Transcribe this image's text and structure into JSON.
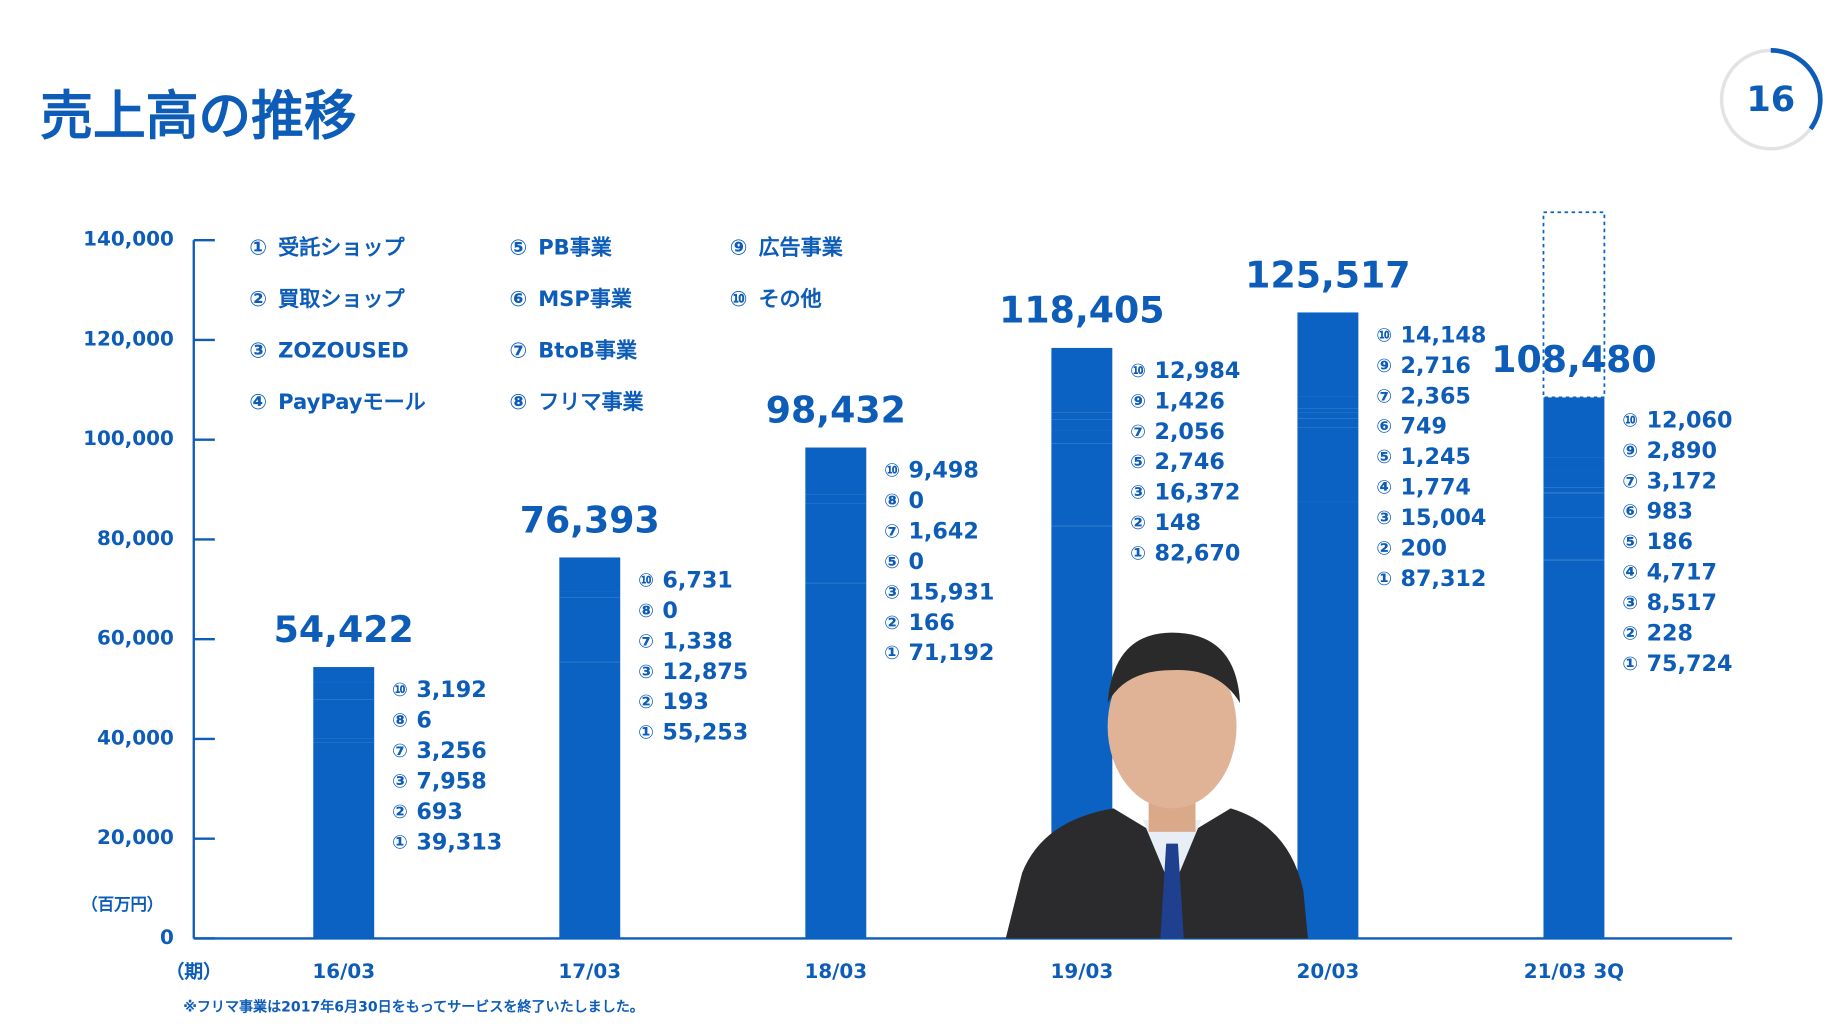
{
  "page_number": "16",
  "chart_data": {
    "type": "stacked_bar",
    "title": "売上高の推移",
    "y_unit_label": "（百万円）",
    "x_label": "（期）",
    "footnote": "※フリマ事業は2017年6月30日をもってサービスを終了いたしました。",
    "color": "#0b62c2",
    "ylim": [
      0,
      140000
    ],
    "yticks": [
      0,
      {
        "value": 20000,
        "label": "20,000"
      },
      {
        "value": 40000,
        "label": "40,000"
      },
      {
        "value": 60000,
        "label": "60,000"
      },
      {
        "value": 80000,
        "label": "80,000"
      },
      {
        "value": 100000,
        "label": "100,000"
      },
      {
        "value": 120000,
        "label": "120,000"
      },
      {
        "value": 140000,
        "label": "140,000"
      }
    ],
    "legend": [
      {
        "marker": "①",
        "name": "受託ショップ"
      },
      {
        "marker": "②",
        "name": "買取ショップ"
      },
      {
        "marker": "③",
        "name": "ZOZOUSED"
      },
      {
        "marker": "④",
        "name": "PayPayモール"
      },
      {
        "marker": "⑤",
        "name": "PB事業"
      },
      {
        "marker": "⑥",
        "name": "MSP事業"
      },
      {
        "marker": "⑦",
        "name": "BtoB事業"
      },
      {
        "marker": "⑧",
        "name": "フリマ事業"
      },
      {
        "marker": "⑨",
        "name": "広告事業"
      },
      {
        "marker": "⑩",
        "name": "その他"
      }
    ],
    "categories": [
      "16/03",
      "17/03",
      "18/03",
      "19/03",
      "20/03",
      "21/03 3Q"
    ],
    "values": [
      54422,
      76393,
      98432,
      118405,
      125517,
      108480
    ],
    "value_labels": [
      "54,422",
      "76,393",
      "98,432",
      "118,405",
      "125,517",
      "108,480"
    ],
    "segments": [
      [
        {
          "key": "⑩",
          "value": 3192,
          "value_label": "3,192"
        },
        {
          "key": "⑧",
          "value": 6
        },
        {
          "key": "⑦",
          "value": 3256,
          "value_label": "3,256"
        },
        {
          "key": "③",
          "value": 7958,
          "value_label": "7,958"
        },
        {
          "key": "②",
          "value": 693
        },
        {
          "key": "①",
          "value": 39313,
          "value_label": "39,313"
        }
      ],
      [
        {
          "key": "⑩",
          "value": 6731,
          "value_label": "6,731"
        },
        {
          "key": "⑧",
          "value": 0
        },
        {
          "key": "⑦",
          "value": 1338,
          "value_label": "1,338"
        },
        {
          "key": "③",
          "value": 12875,
          "value_label": "12,875"
        },
        {
          "key": "②",
          "value": 193
        },
        {
          "key": "①",
          "value": 55253,
          "value_label": "55,253"
        }
      ],
      [
        {
          "key": "⑩",
          "value": 9498,
          "value_label": "9,498"
        },
        {
          "key": "⑧",
          "value": 0
        },
        {
          "key": "⑦",
          "value": 1642,
          "value_label": "1,642"
        },
        {
          "key": "⑤",
          "value": 0
        },
        {
          "key": "③",
          "value": 15931,
          "value_label": "15,931"
        },
        {
          "key": "②",
          "value": 166
        },
        {
          "key": "①",
          "value": 71192,
          "value_label": "71,192"
        }
      ],
      [
        {
          "key": "⑩",
          "value": 12984,
          "value_label": "12,984"
        },
        {
          "key": "⑨",
          "value": 1426,
          "value_label": "1,426"
        },
        {
          "key": "⑦",
          "value": 2056,
          "value_label": "2,056"
        },
        {
          "key": "⑤",
          "value": 2746,
          "value_label": "2,746"
        },
        {
          "key": "③",
          "value": 16372,
          "value_label": "16,372"
        },
        {
          "key": "②",
          "value": 148
        },
        {
          "key": "①",
          "value": 82670,
          "value_label": "82,670"
        }
      ],
      [
        {
          "key": "⑩",
          "value": 14148,
          "value_label": "14,148"
        },
        {
          "key": "⑨",
          "value": 2716,
          "value_label": "2,716"
        },
        {
          "key": "⑦",
          "value": 2365,
          "value_label": "2,365"
        },
        {
          "key": "⑥",
          "value": 749
        },
        {
          "key": "⑤",
          "value": 1245,
          "value_label": "1,245"
        },
        {
          "key": "④",
          "value": 1774,
          "value_label": "1,774"
        },
        {
          "key": "③",
          "value": 15004,
          "value_label": "15,004"
        },
        {
          "key": "②",
          "value": 200
        },
        {
          "key": "①",
          "value": 87312,
          "value_label": "87,312"
        }
      ],
      [
        {
          "key": "⑩",
          "value": 12060,
          "value_label": "12,060"
        },
        {
          "key": "⑨",
          "value": 2890,
          "value_label": "2,890"
        },
        {
          "key": "⑦",
          "value": 3172,
          "value_label": "3,172"
        },
        {
          "key": "⑥",
          "value": 983
        },
        {
          "key": "⑤",
          "value": 186
        },
        {
          "key": "④",
          "value": 4717,
          "value_label": "4,717"
        },
        {
          "key": "③",
          "value": 8517,
          "value_label": "8,517"
        },
        {
          "key": "②",
          "value": 228
        },
        {
          "key": "①",
          "value": 75724,
          "value_label": "75,724"
        }
      ]
    ]
  }
}
